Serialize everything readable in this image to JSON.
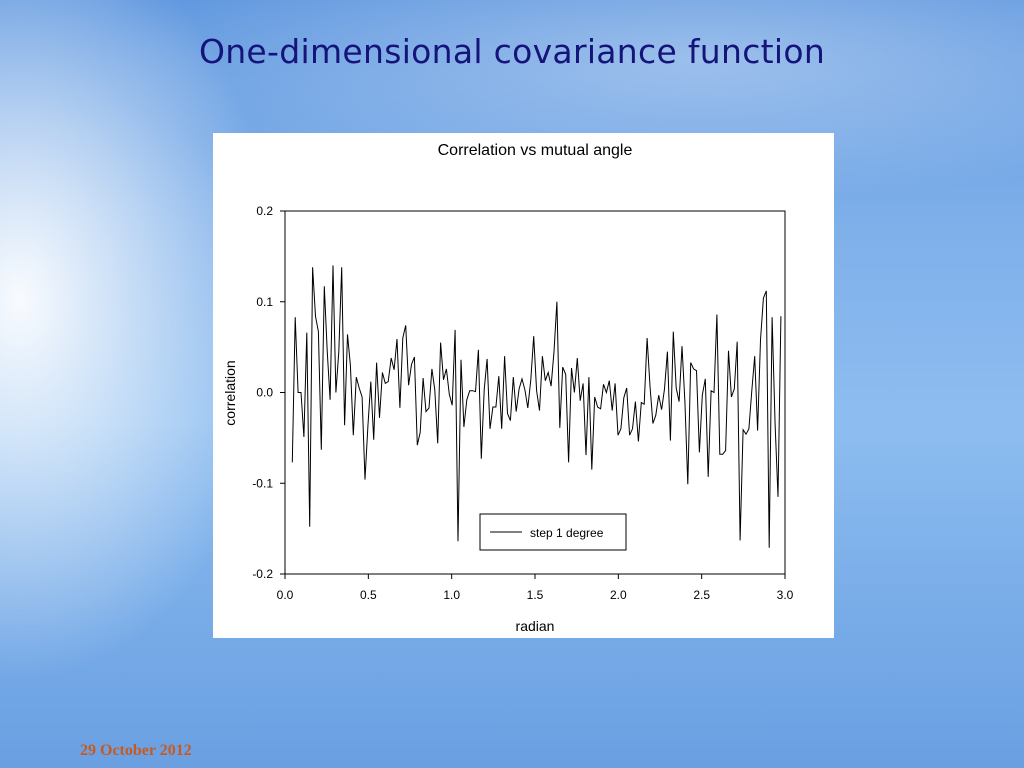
{
  "slide": {
    "title": "One-dimensional covariance function",
    "date": "29 October 2012"
  },
  "colors": {
    "title": "#14147a",
    "date": "#c85a1e",
    "line": "#000000"
  },
  "chart_data": {
    "type": "line",
    "title": "Correlation vs mutual angle",
    "xlabel": "radian",
    "ylabel": "correlation",
    "xlim": [
      0.0,
      3.0
    ],
    "ylim": [
      -0.2,
      0.2
    ],
    "xticks": [
      "0.0",
      "0.5",
      "1.0",
      "1.5",
      "2.0",
      "2.5",
      "3.0"
    ],
    "yticks": [
      "-0.2",
      "-0.1",
      "0.0",
      "0.1",
      "0.2"
    ],
    "grid": false,
    "legend_position": "bottom-center",
    "series": [
      {
        "name": "step 1 degree",
        "x_start": 0.0436,
        "x_step": 0.01745,
        "values": [
          -0.077,
          0.083,
          0.0,
          0.0,
          -0.049,
          0.066,
          -0.148,
          0.138,
          0.084,
          0.067,
          -0.063,
          0.117,
          0.046,
          -0.008,
          0.14,
          0.0,
          0.045,
          0.138,
          -0.036,
          0.064,
          0.03,
          -0.047,
          0.017,
          0.005,
          -0.005,
          -0.096,
          -0.037,
          0.012,
          -0.052,
          0.033,
          -0.028,
          0.022,
          0.01,
          0.012,
          0.038,
          0.025,
          0.059,
          -0.017,
          0.06,
          0.074,
          0.008,
          0.031,
          0.039,
          -0.058,
          -0.044,
          0.016,
          -0.021,
          -0.017,
          0.026,
          0.003,
          -0.056,
          0.055,
          0.014,
          0.026,
          -0.002,
          -0.014,
          0.069,
          -0.164,
          0.036,
          -0.038,
          -0.008,
          0.002,
          0.002,
          0.001,
          0.047,
          -0.073,
          0.003,
          0.037,
          -0.04,
          -0.016,
          -0.016,
          0.018,
          -0.04,
          0.04,
          -0.023,
          -0.031,
          0.017,
          -0.021,
          0.004,
          0.015,
          0.003,
          -0.017,
          0.014,
          0.062,
          0.002,
          -0.02,
          0.04,
          0.013,
          0.022,
          0.007,
          0.045,
          0.1,
          -0.039,
          0.028,
          0.02,
          -0.077,
          0.027,
          0.0,
          0.038,
          -0.009,
          0.01,
          -0.069,
          0.017,
          -0.085,
          -0.005,
          -0.016,
          -0.018,
          0.009,
          0.0,
          0.013,
          -0.02,
          0.01,
          -0.047,
          -0.04,
          -0.006,
          0.005,
          -0.047,
          -0.04,
          -0.01,
          -0.054,
          -0.011,
          -0.013,
          0.06,
          0.007,
          -0.034,
          -0.025,
          -0.003,
          -0.019,
          0.004,
          0.045,
          -0.053,
          0.067,
          0.005,
          -0.01,
          0.051,
          -0.01,
          -0.101,
          0.033,
          0.026,
          0.024,
          -0.066,
          -0.003,
          0.015,
          -0.093,
          0.002,
          0.0,
          0.086,
          -0.068,
          -0.068,
          -0.064,
          0.046,
          -0.005,
          0.004,
          0.056,
          -0.163,
          -0.041,
          -0.046,
          -0.04,
          0.002,
          0.04,
          -0.042,
          0.058,
          0.104,
          0.112,
          -0.171,
          0.083,
          -0.035,
          -0.115,
          0.084
        ]
      }
    ]
  }
}
